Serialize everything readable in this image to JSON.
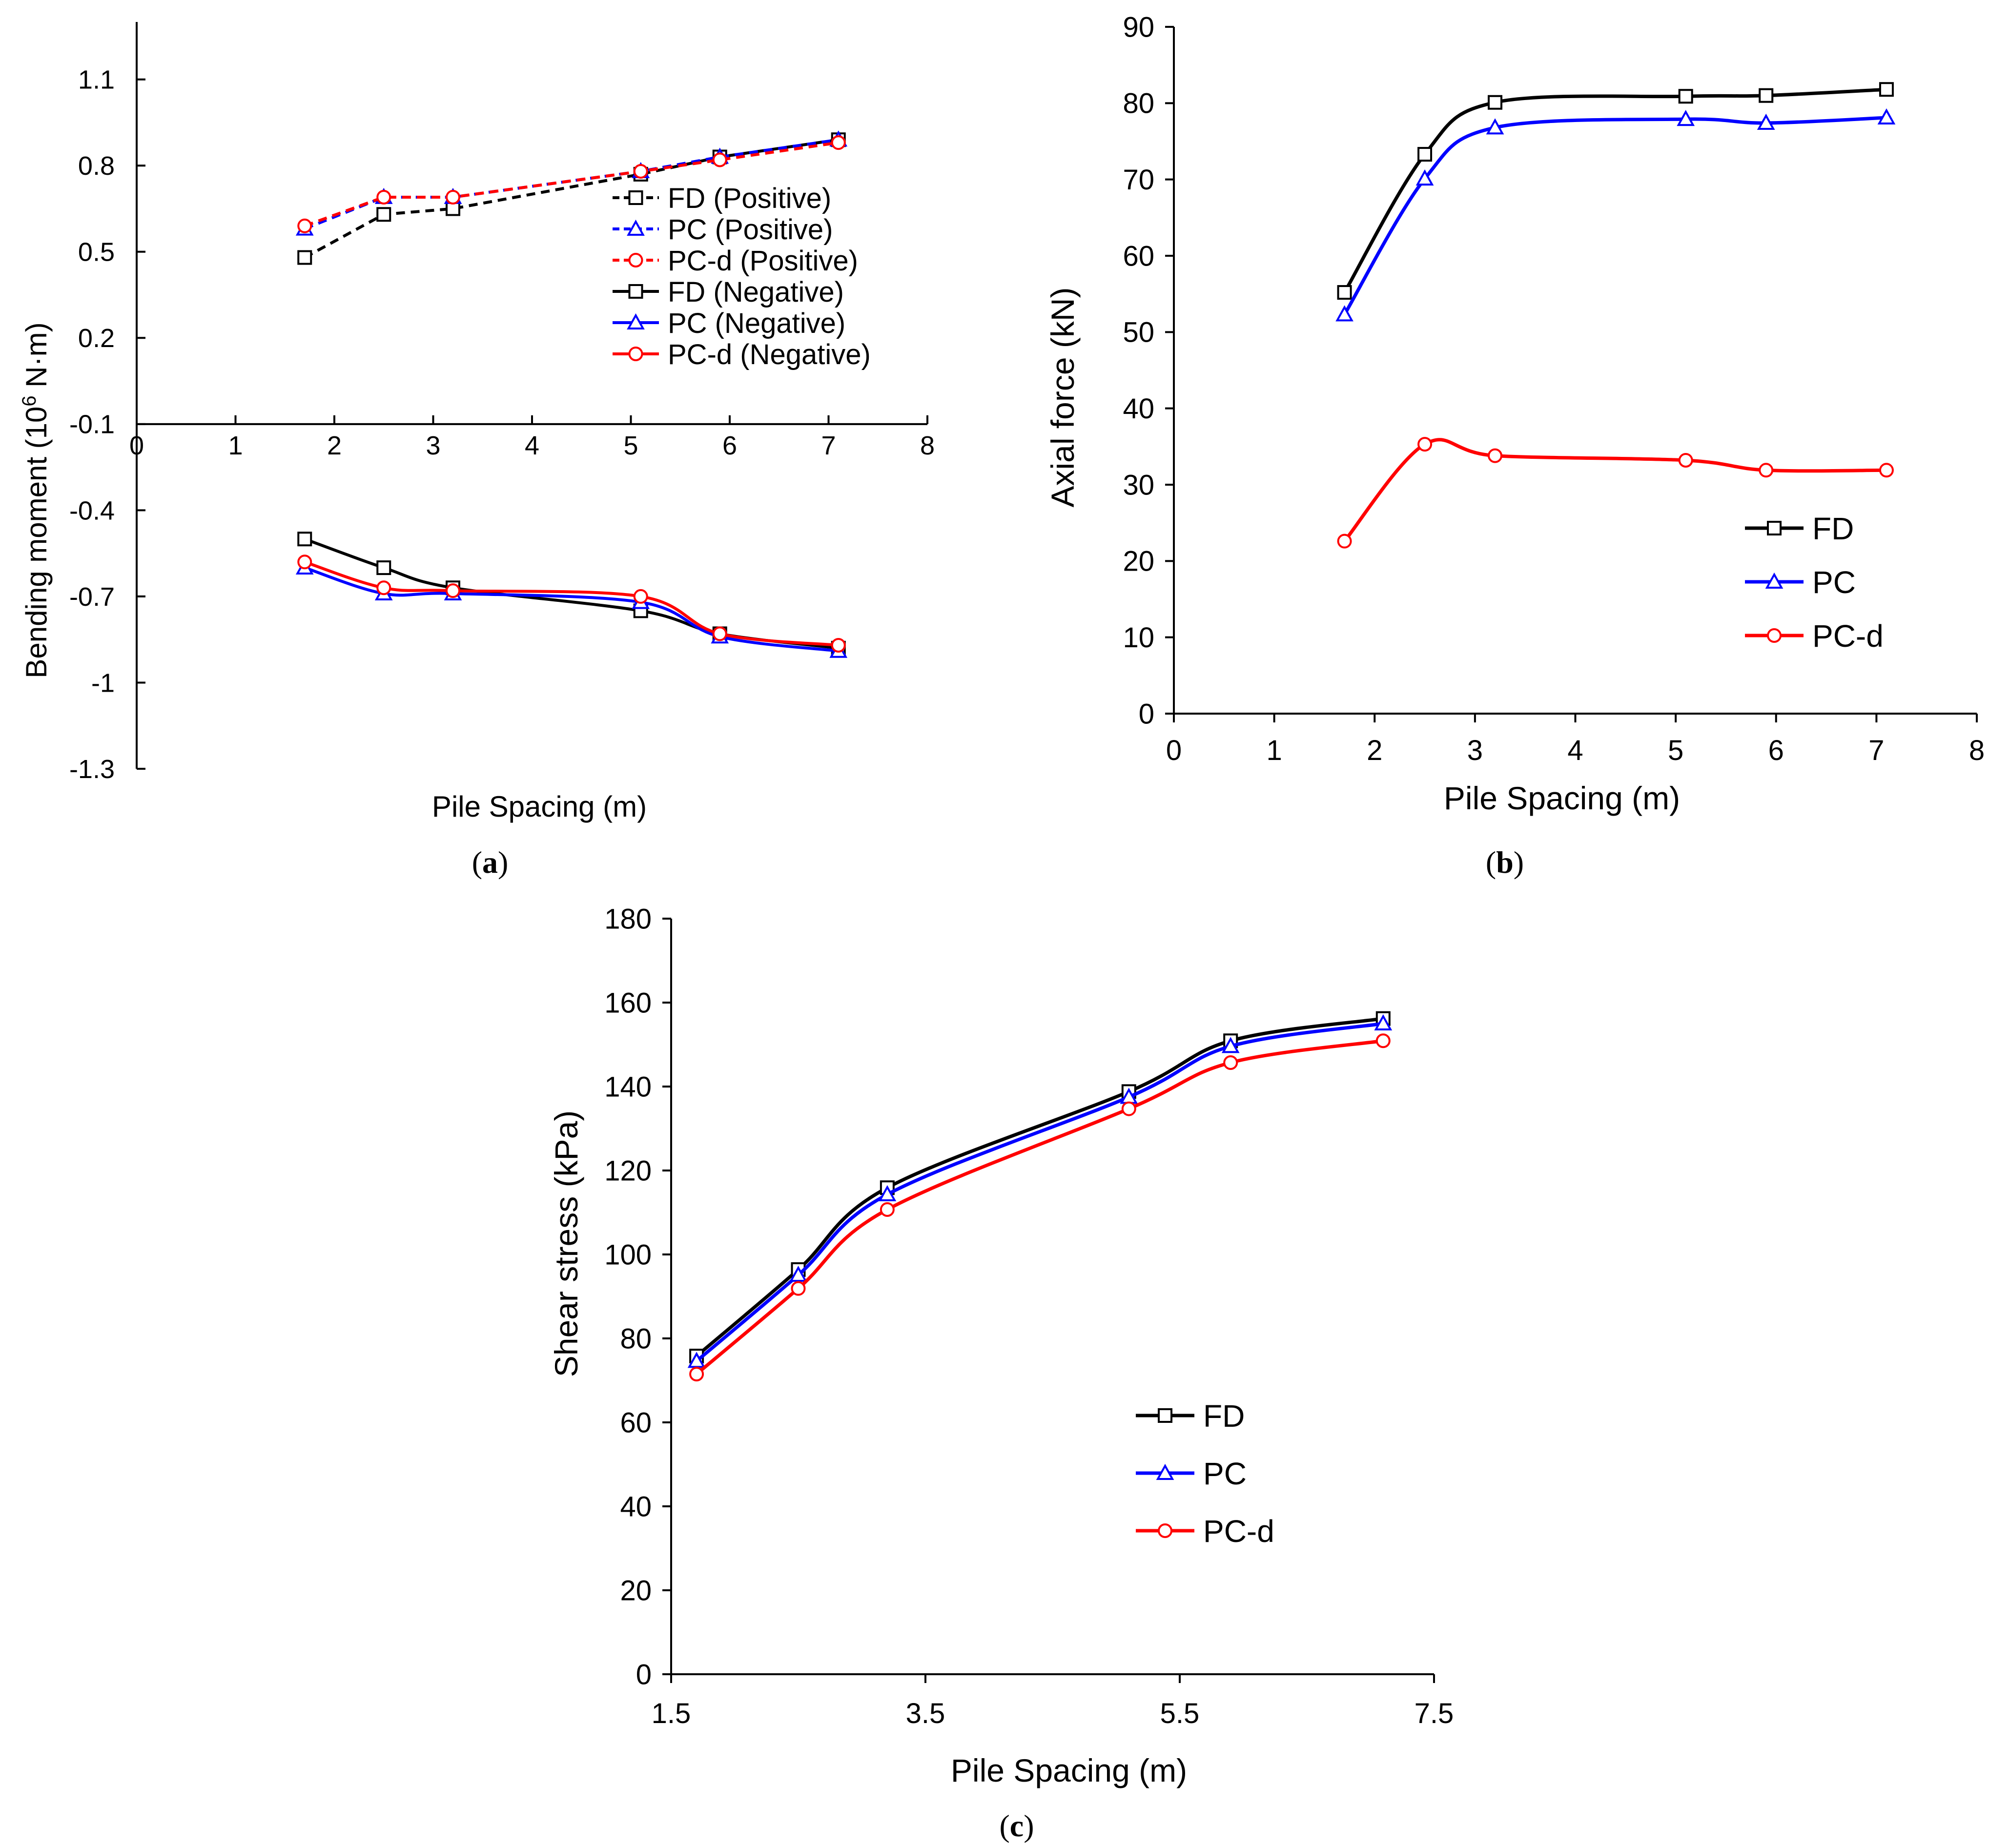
{
  "chart_data": [
    {
      "id": "a",
      "type": "line",
      "caption_letter": "a",
      "xlabel": "Pile Spacing (m)",
      "ylabel_main": "Bending moment (10",
      "ylabel_sup": "6",
      "ylabel_tail": " N·m)",
      "xlim": [
        0,
        8
      ],
      "ylim": [
        -1.3,
        1.3
      ],
      "x_ticks": [
        "0",
        "1",
        "2",
        "3",
        "4",
        "5",
        "6",
        "7",
        "8"
      ],
      "y_ticks": [
        "1.1",
        "0.8",
        "0.5",
        "0.2",
        "-0.1",
        "-0.4",
        "-0.7",
        "-1",
        "-1.3"
      ],
      "grid": false,
      "legend_position": "right-center",
      "series": [
        {
          "name": "FD (Positive)",
          "color": "#000000",
          "dashed": true,
          "marker": "square",
          "x": [
            1.7,
            2.5,
            3.2,
            5.1,
            5.9,
            7.1
          ],
          "y": [
            0.48,
            0.63,
            0.65,
            0.77,
            0.83,
            0.89
          ]
        },
        {
          "name": "PC (Positive)",
          "color": "#0000ff",
          "dashed": true,
          "marker": "triangle",
          "x": [
            1.7,
            2.5,
            3.2,
            5.1,
            5.9,
            7.1
          ],
          "y": [
            0.58,
            0.69,
            0.69,
            0.78,
            0.83,
            0.89
          ]
        },
        {
          "name": "PC-d (Positive)",
          "color": "#ff0000",
          "dashed": true,
          "marker": "circle",
          "x": [
            1.7,
            2.5,
            3.2,
            5.1,
            5.9,
            7.1
          ],
          "y": [
            0.59,
            0.69,
            0.69,
            0.78,
            0.82,
            0.88
          ]
        },
        {
          "name": "FD (Negative)",
          "color": "#000000",
          "dashed": false,
          "marker": "square",
          "x": [
            1.7,
            2.5,
            3.2,
            5.1,
            5.9,
            7.1
          ],
          "y": [
            -0.5,
            -0.6,
            -0.67,
            -0.75,
            -0.83,
            -0.88
          ]
        },
        {
          "name": "PC (Negative)",
          "color": "#0000ff",
          "dashed": false,
          "marker": "triangle",
          "x": [
            1.7,
            2.5,
            3.2,
            5.1,
            5.9,
            7.1
          ],
          "y": [
            -0.6,
            -0.69,
            -0.69,
            -0.72,
            -0.84,
            -0.89
          ]
        },
        {
          "name": "PC-d (Negative)",
          "color": "#ff0000",
          "dashed": false,
          "marker": "circle",
          "x": [
            1.7,
            2.5,
            3.2,
            5.1,
            5.9,
            7.1
          ],
          "y": [
            -0.58,
            -0.67,
            -0.68,
            -0.7,
            -0.83,
            -0.87
          ]
        }
      ]
    },
    {
      "id": "b",
      "type": "line",
      "caption_letter": "b",
      "xlabel": "Pile Spacing (m)",
      "ylabel": "Axial force (kN)",
      "xlim": [
        0,
        8
      ],
      "ylim": [
        0,
        90
      ],
      "x_ticks": [
        "0",
        "1",
        "2",
        "3",
        "4",
        "5",
        "6",
        "7",
        "8"
      ],
      "y_ticks": [
        "0",
        "10",
        "20",
        "30",
        "40",
        "50",
        "60",
        "70",
        "80",
        "90"
      ],
      "grid": false,
      "legend_position": "lower-right",
      "series": [
        {
          "name": "FD",
          "color": "#000000",
          "dashed": false,
          "marker": "square",
          "x": [
            1.7,
            2.5,
            3.2,
            5.1,
            5.9,
            7.1
          ],
          "y": [
            55.2,
            73.3,
            80.1,
            80.9,
            81.0,
            81.8
          ]
        },
        {
          "name": "PC",
          "color": "#0000ff",
          "dashed": false,
          "marker": "triangle",
          "x": [
            1.7,
            2.5,
            3.2,
            5.1,
            5.9,
            7.1
          ],
          "y": [
            52.3,
            70.1,
            76.8,
            77.9,
            77.4,
            78.1
          ]
        },
        {
          "name": "PC-d",
          "color": "#ff0000",
          "dashed": false,
          "marker": "circle",
          "x": [
            1.7,
            2.5,
            3.2,
            5.1,
            5.9,
            7.1
          ],
          "y": [
            22.6,
            35.3,
            33.8,
            33.2,
            31.9,
            31.9
          ]
        }
      ]
    },
    {
      "id": "c",
      "type": "line",
      "caption_letter": "c",
      "xlabel": "Pile Spacing (m)",
      "ylabel": "Shear stress (kPa)",
      "xlim": [
        1.5,
        7.5
      ],
      "ylim": [
        0,
        180
      ],
      "x_ticks": [
        "1.5",
        "3.5",
        "5.5",
        "7.5"
      ],
      "y_ticks": [
        "0",
        "20",
        "40",
        "60",
        "80",
        "100",
        "120",
        "140",
        "160",
        "180"
      ],
      "grid": false,
      "legend_position": "lower-center",
      "series": [
        {
          "name": "FD",
          "color": "#000000",
          "dashed": false,
          "marker": "square",
          "x": [
            1.7,
            2.5,
            3.2,
            5.1,
            5.9,
            7.1
          ],
          "y": [
            75.8,
            96.4,
            115.9,
            138.8,
            150.9,
            156.2
          ]
        },
        {
          "name": "PC",
          "color": "#0000ff",
          "dashed": false,
          "marker": "triangle",
          "x": [
            1.7,
            2.5,
            3.2,
            5.1,
            5.9,
            7.1
          ],
          "y": [
            74.6,
            95.1,
            114.3,
            137.5,
            149.6,
            155.0
          ]
        },
        {
          "name": "PC-d",
          "color": "#ff0000",
          "dashed": false,
          "marker": "circle",
          "x": [
            1.7,
            2.5,
            3.2,
            5.1,
            5.9,
            7.1
          ],
          "y": [
            71.5,
            91.9,
            110.7,
            134.7,
            145.7,
            150.9
          ]
        }
      ]
    }
  ]
}
